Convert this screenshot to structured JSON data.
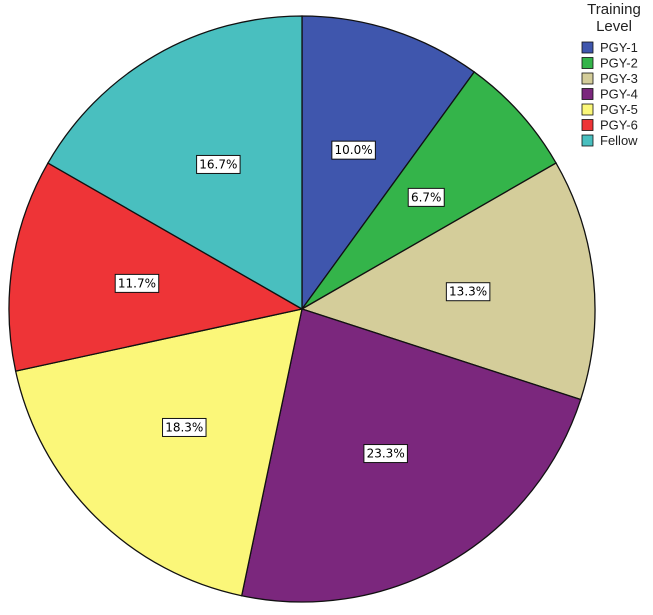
{
  "chart_data": {
    "type": "pie",
    "legend_title_lines": [
      "Training",
      "Level"
    ],
    "legend_position": "top-right",
    "start_angle_deg": 0,
    "direction": "clockwise",
    "slices": [
      {
        "name": "PGY-1",
        "value": 10.0,
        "label": "10.0%",
        "color": "#3f56ad"
      },
      {
        "name": "PGY-2",
        "value": 6.7,
        "label": "6.7%",
        "color": "#34b44a"
      },
      {
        "name": "PGY-3",
        "value": 13.3,
        "label": "13.3%",
        "color": "#d4cd9a"
      },
      {
        "name": "PGY-4",
        "value": 23.3,
        "label": "23.3%",
        "color": "#7b277d"
      },
      {
        "name": "PGY-5",
        "value": 18.3,
        "label": "18.3%",
        "color": "#fbf779"
      },
      {
        "name": "PGY-6",
        "value": 11.7,
        "label": "11.7%",
        "color": "#ee3437"
      },
      {
        "name": "Fellow",
        "value": 16.7,
        "label": "16.7%",
        "color": "#49bfbf"
      }
    ]
  }
}
